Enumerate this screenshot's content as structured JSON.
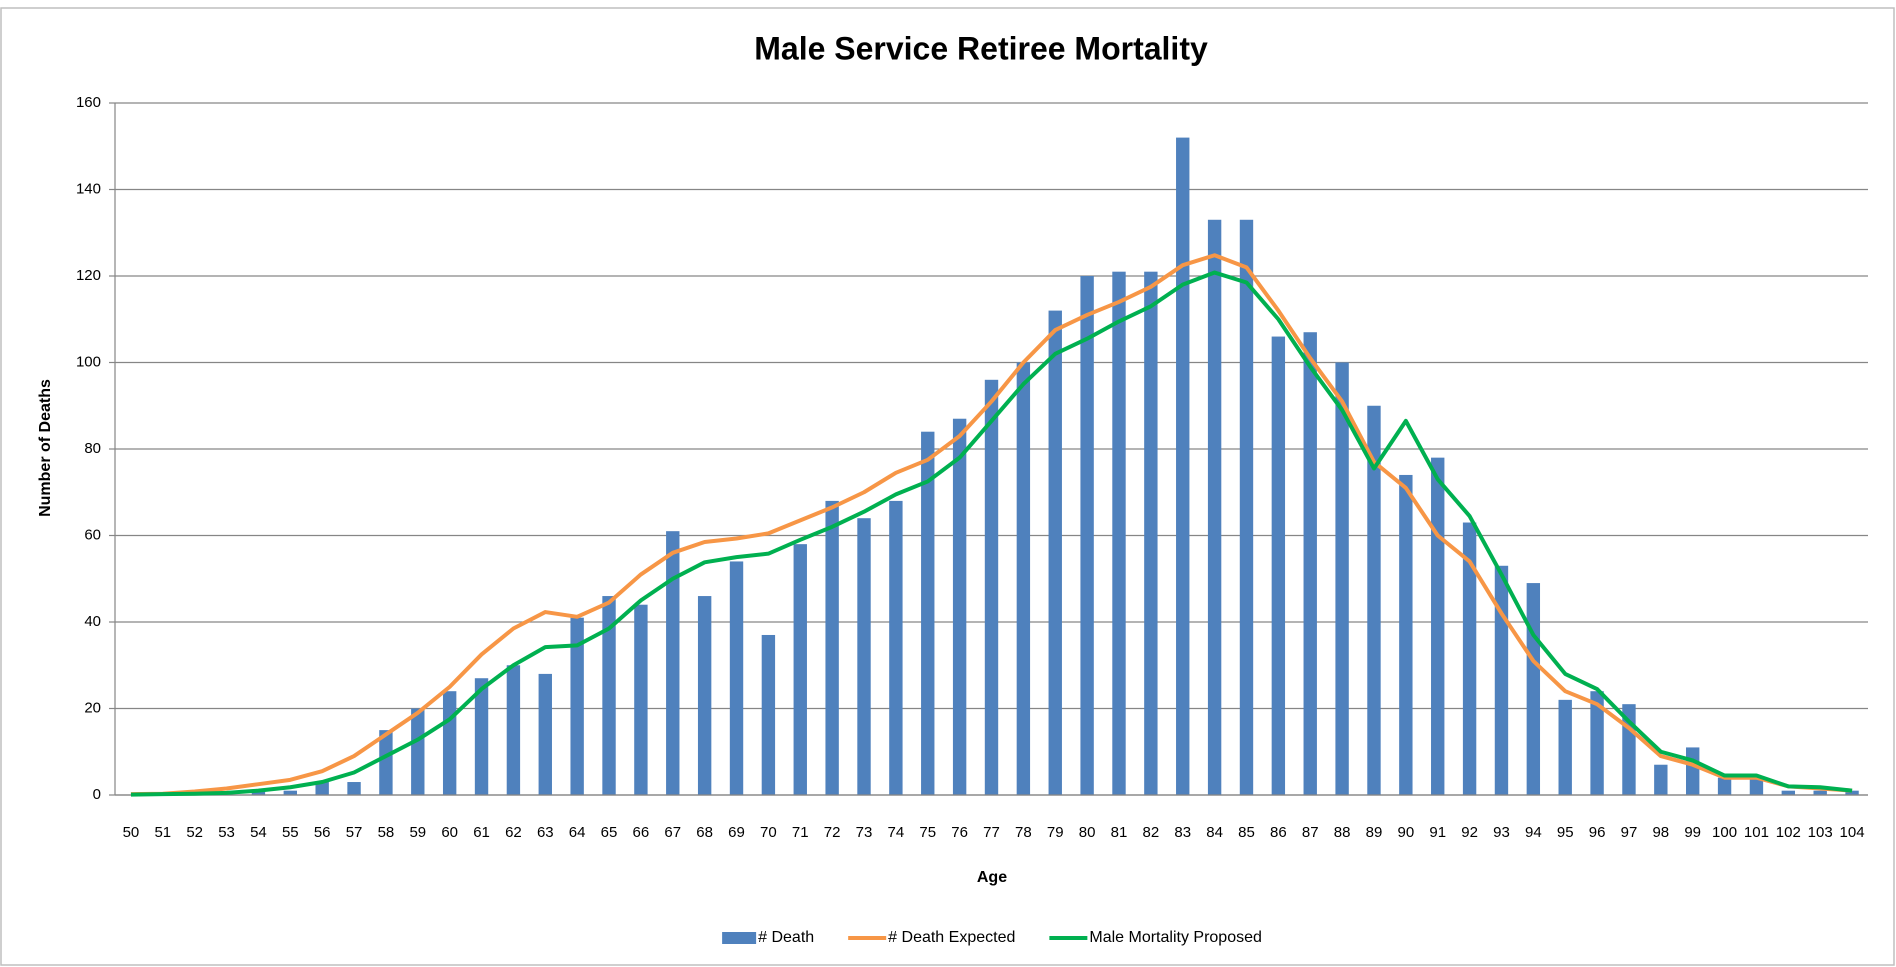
{
  "chart_data": {
    "type": "bar",
    "title": "Male Service Retiree Mortality",
    "x_label": "Age",
    "y_label": "Number of Deaths",
    "categories": [
      "50",
      "51",
      "52",
      "53",
      "54",
      "55",
      "56",
      "57",
      "58",
      "59",
      "60",
      "61",
      "62",
      "63",
      "64",
      "65",
      "66",
      "67",
      "68",
      "69",
      "70",
      "71",
      "72",
      "73",
      "74",
      "75",
      "76",
      "77",
      "78",
      "79",
      "80",
      "81",
      "82",
      "83",
      "84",
      "85",
      "86",
      "87",
      "88",
      "89",
      "90",
      "91",
      "92",
      "93",
      "94",
      "95",
      "96",
      "97",
      "98",
      "99",
      "100",
      "101",
      "102",
      "103",
      "104"
    ],
    "series": [
      {
        "name": "# Death",
        "type": "bar",
        "color": "#4f81bd",
        "values": [
          0,
          0,
          0,
          0,
          1,
          1,
          3,
          3,
          15,
          20,
          24,
          27,
          30,
          28,
          41,
          46,
          44,
          61,
          46,
          54,
          37,
          58,
          68,
          64,
          68,
          84,
          87,
          96,
          100,
          112,
          120,
          121,
          121,
          152,
          133,
          133,
          106,
          107,
          100,
          90,
          74,
          78,
          63,
          53,
          49,
          22,
          24,
          21,
          7,
          11,
          4,
          4,
          1,
          1,
          1
        ]
      },
      {
        "name": "# Death Expected",
        "type": "line",
        "color": "#f79646",
        "values": [
          0.2,
          0.3,
          0.8,
          1.5,
          2.5,
          3.5,
          5.5,
          9,
          14,
          19,
          25,
          32.5,
          38.5,
          42.3,
          41.2,
          44.5,
          51,
          56,
          58.5,
          59.3,
          60.5,
          63.5,
          66.5,
          70,
          74.5,
          77.5,
          83,
          91,
          100,
          107.5,
          111,
          114,
          117.5,
          122.5,
          124.8,
          122,
          112,
          101,
          91,
          77,
          71,
          60,
          54,
          42,
          31,
          24,
          21,
          15.5,
          9,
          7,
          4,
          4,
          2,
          1.5,
          1
        ]
      },
      {
        "name": "Male Mortality Proposed",
        "type": "line",
        "color": "#00b050",
        "values": [
          0.1,
          0.2,
          0.3,
          0.5,
          1,
          1.8,
          3,
          5.2,
          9,
          12.8,
          17.5,
          24.5,
          30,
          34.2,
          34.6,
          38.5,
          45,
          50,
          53.8,
          55,
          55.8,
          59,
          62,
          65.5,
          69.5,
          72.5,
          78,
          86.5,
          95,
          102,
          105.5,
          109.5,
          113,
          118,
          120.8,
          118.5,
          110,
          99,
          89,
          75.5,
          86.5,
          73,
          64.5,
          51,
          37,
          28,
          24.5,
          17,
          10,
          8,
          4.5,
          4.5,
          2,
          1.8,
          1
        ]
      }
    ],
    "ylim": [
      0,
      160
    ],
    "yticks": [
      0,
      20,
      40,
      60,
      80,
      100,
      120,
      140,
      160
    ],
    "grid": true,
    "legend": "bottom"
  }
}
